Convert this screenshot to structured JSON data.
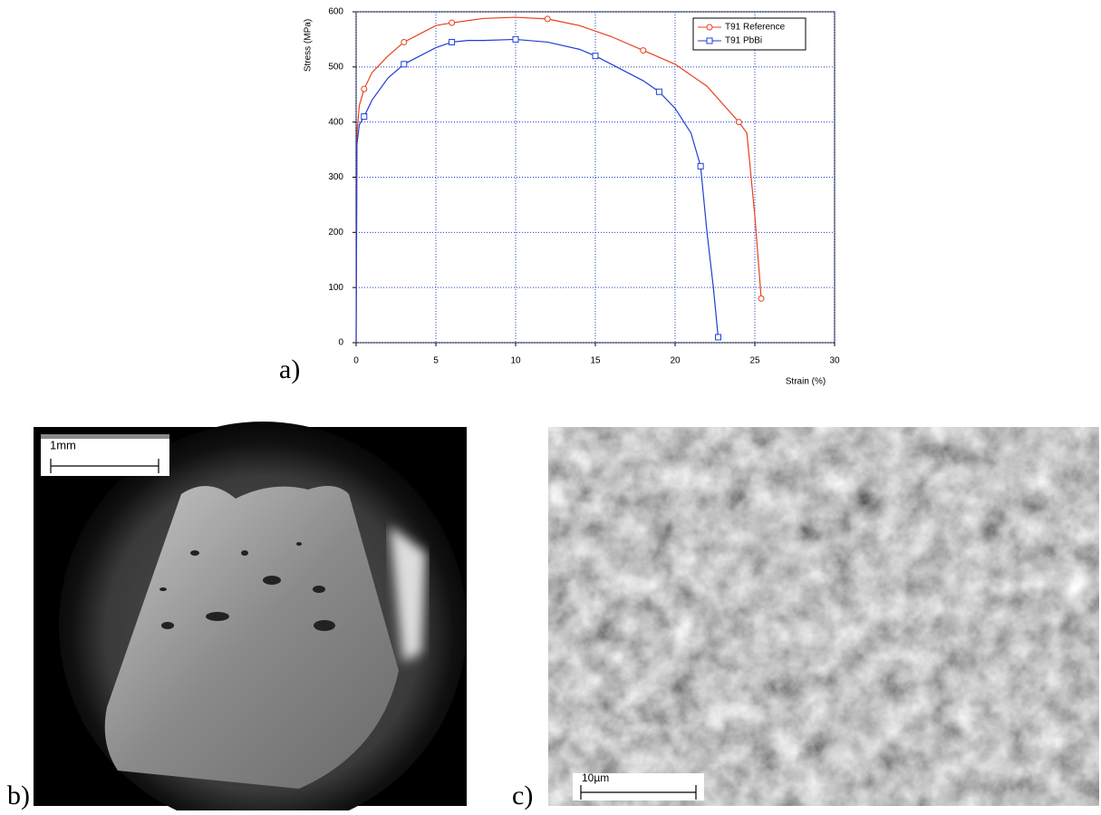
{
  "chart_data": {
    "type": "line",
    "y_label": "Stress (MPa)",
    "x_label": "Strain (%)",
    "xlim": [
      0,
      30
    ],
    "ylim": [
      0,
      600
    ],
    "xticks": [
      0,
      5,
      10,
      15,
      20,
      25,
      30
    ],
    "yticks": [
      0,
      100,
      200,
      300,
      400,
      500,
      600
    ],
    "grid": true,
    "legend": "top-right",
    "series": [
      {
        "name": "T91 Reference",
        "color": "#e8401c",
        "marker": "circle",
        "x": [
          0,
          0.05,
          0.2,
          0.5,
          1,
          2,
          3,
          4,
          5,
          6,
          8,
          10,
          12,
          14,
          16,
          18,
          20,
          22,
          24,
          24.5,
          25,
          25.4
        ],
        "values": [
          0,
          380,
          430,
          460,
          490,
          520,
          545,
          560,
          575,
          580,
          588,
          590,
          587,
          575,
          555,
          530,
          505,
          465,
          400,
          380,
          230,
          80
        ]
      },
      {
        "name": "T91 PbBi",
        "color": "#1f3fd6",
        "marker": "square",
        "x": [
          0,
          0.05,
          0.2,
          0.5,
          1,
          2,
          3,
          4,
          5,
          6,
          7,
          8,
          10,
          12,
          14,
          15,
          16,
          18,
          19,
          20,
          21,
          21.6,
          22,
          22.4,
          22.7
        ],
        "values": [
          0,
          360,
          395,
          410,
          440,
          480,
          505,
          520,
          535,
          545,
          548,
          548,
          550,
          545,
          532,
          520,
          505,
          475,
          455,
          425,
          380,
          320,
          200,
          100,
          10
        ]
      }
    ]
  },
  "panels": {
    "a": "a)",
    "b": "b)",
    "c": "c)"
  },
  "scale_bars": {
    "b": "1mm",
    "c": "10µm"
  }
}
